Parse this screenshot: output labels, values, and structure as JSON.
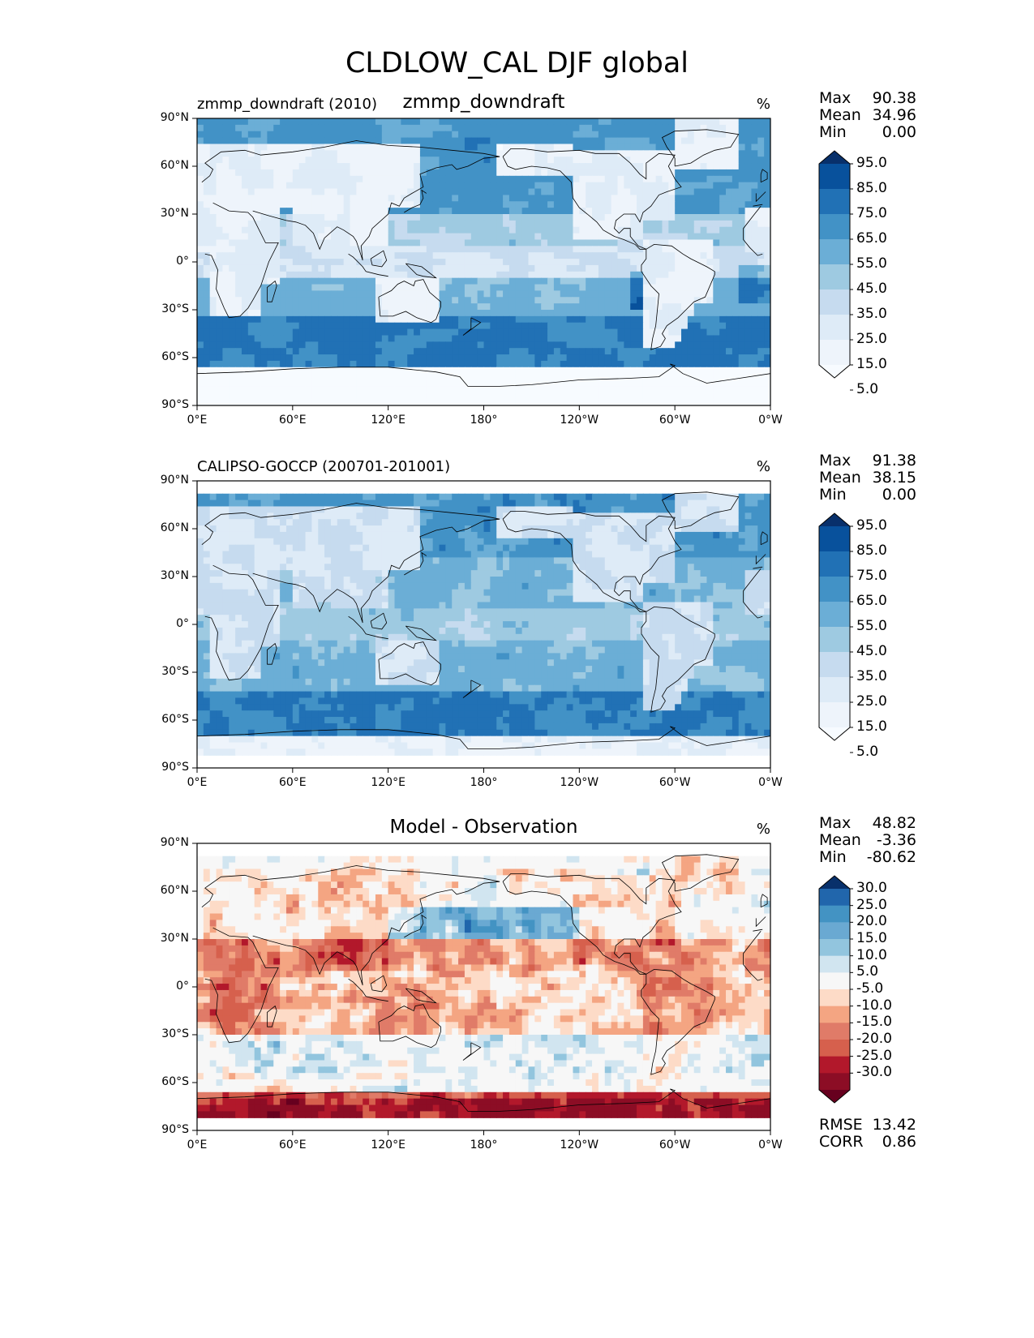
{
  "figure": {
    "title": "CLDLOW_CAL DJF global"
  },
  "chart_data": [
    {
      "type": "heatmap",
      "panel": "test",
      "title_left": "zmmp_downdraft (2010)",
      "title_center": "zmmp_downdraft",
      "units": "%",
      "stats": {
        "Max": "90.38",
        "Mean": "34.96",
        "Min": "0.00"
      },
      "x_ticks": [
        "0°E",
        "60°E",
        "120°E",
        "180°",
        "120°W",
        "60°W",
        "0°W"
      ],
      "y_ticks": [
        "90°N",
        "60°N",
        "30°N",
        "0°",
        "30°S",
        "60°S",
        "90°S"
      ],
      "xlim": [
        0,
        360
      ],
      "ylim": [
        -90,
        90
      ],
      "colorbar": {
        "labels": [
          "95.0",
          "85.0",
          "75.0",
          "65.0",
          "55.0",
          "45.0",
          "35.0",
          "25.0",
          "15.0",
          "5.0"
        ],
        "colors": [
          "#08306b",
          "#08519c",
          "#2171b5",
          "#4292c6",
          "#6baed6",
          "#9ecae1",
          "#c6dbef",
          "#deebf7",
          "#eef4fb",
          "#f7fbff"
        ]
      }
    },
    {
      "type": "heatmap",
      "panel": "reference",
      "title_left": "CALIPSO-GOCCP (200701-201001)",
      "title_center": "",
      "units": "%",
      "stats": {
        "Max": "91.38",
        "Mean": "38.15",
        "Min": "0.00"
      },
      "x_ticks": [
        "0°E",
        "60°E",
        "120°E",
        "180°",
        "120°W",
        "60°W",
        "0°W"
      ],
      "y_ticks": [
        "90°N",
        "60°N",
        "30°N",
        "0°",
        "30°S",
        "60°S",
        "90°S"
      ],
      "xlim": [
        0,
        360
      ],
      "ylim": [
        -90,
        90
      ],
      "colorbar": {
        "labels": [
          "95.0",
          "85.0",
          "75.0",
          "65.0",
          "55.0",
          "45.0",
          "35.0",
          "25.0",
          "15.0",
          "5.0"
        ],
        "colors": [
          "#08306b",
          "#08519c",
          "#2171b5",
          "#4292c6",
          "#6baed6",
          "#9ecae1",
          "#c6dbef",
          "#deebf7",
          "#eef4fb",
          "#f7fbff"
        ]
      }
    },
    {
      "type": "heatmap",
      "panel": "difference",
      "title_left": "",
      "title_center": "Model - Observation",
      "units": "%",
      "stats": {
        "Max": "48.82",
        "Mean": "-3.36",
        "Min": "-80.62"
      },
      "extra_stats": {
        "RMSE": "13.42",
        "CORR": "0.86"
      },
      "x_ticks": [
        "0°E",
        "60°E",
        "120°E",
        "180°",
        "120°W",
        "60°W",
        "0°W"
      ],
      "y_ticks": [
        "90°N",
        "60°N",
        "30°N",
        "0°",
        "30°S",
        "60°S",
        "90°S"
      ],
      "xlim": [
        0,
        360
      ],
      "ylim": [
        -90,
        90
      ],
      "colorbar": {
        "labels": [
          "30.0",
          "25.0",
          "20.0",
          "15.0",
          "10.0",
          "5.0",
          "-5.0",
          "-10.0",
          "-15.0",
          "-20.0",
          "-25.0",
          "-30.0"
        ],
        "colors": [
          "#08306b",
          "#2166ac",
          "#4393c3",
          "#6aa9d2",
          "#92c5de",
          "#d1e5f0",
          "#f7f7f7",
          "#fddbc7",
          "#f4a582",
          "#e07b68",
          "#d6604d",
          "#b2182b",
          "#8c0d25",
          "#67001f"
        ]
      }
    }
  ]
}
